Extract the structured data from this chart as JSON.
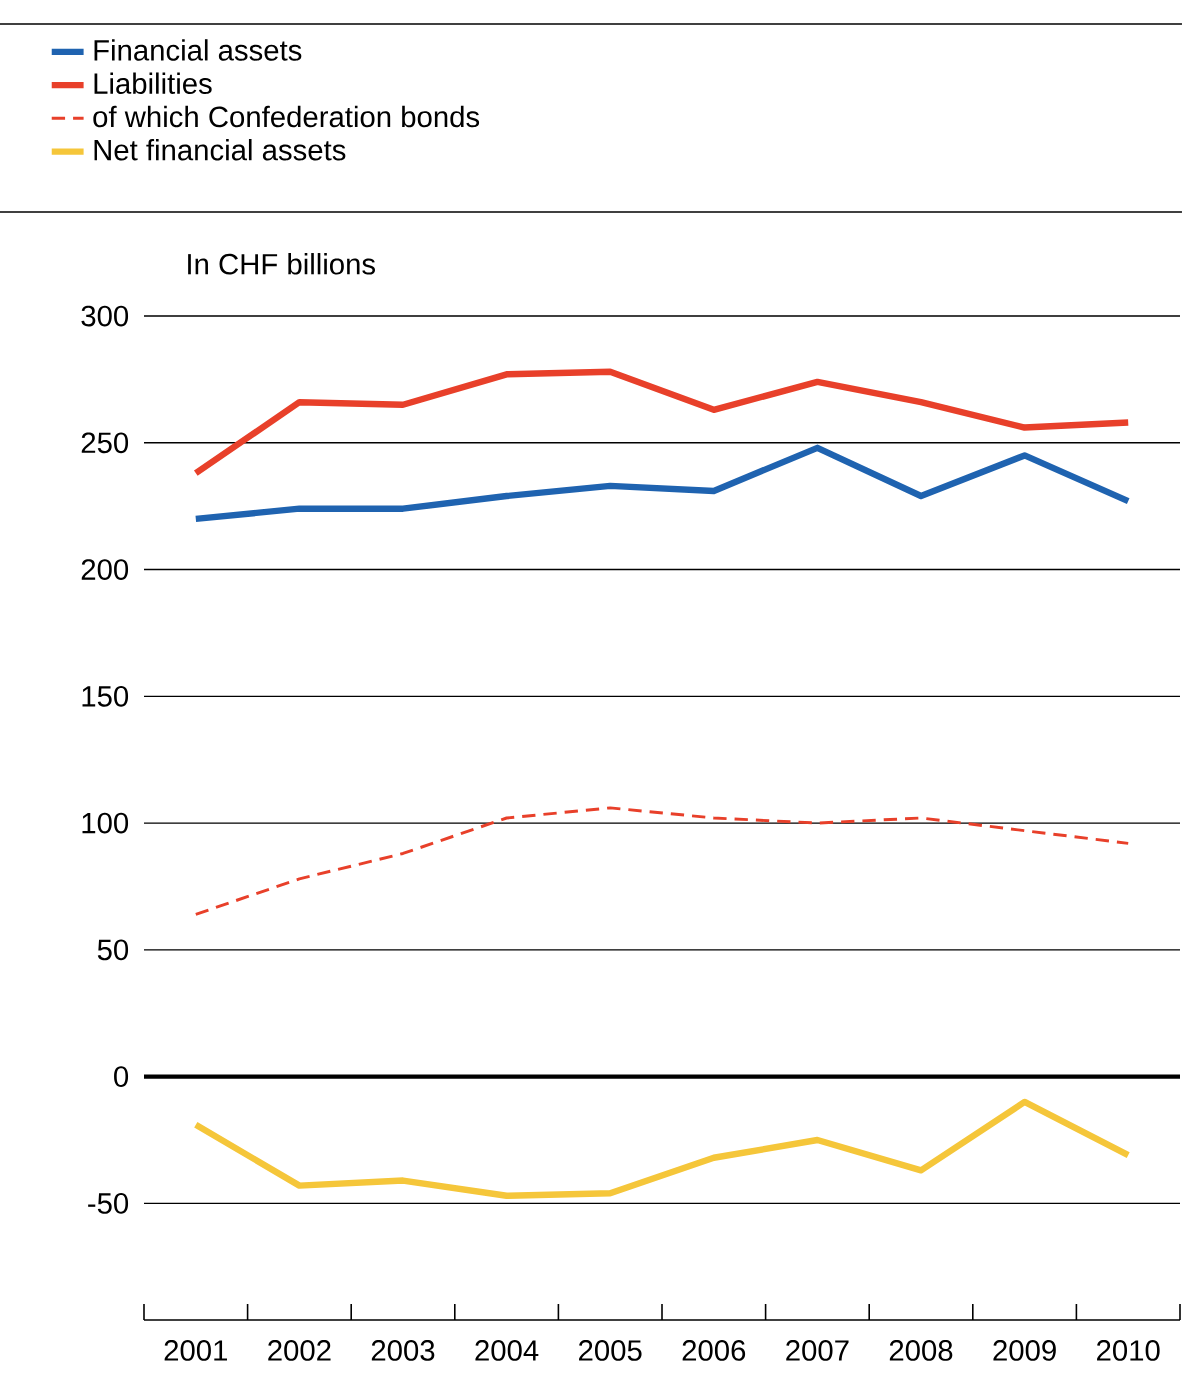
{
  "chart_data": {
    "type": "line",
    "ylabel": "In CHF billions",
    "categories": [
      "2001",
      "2002",
      "2003",
      "2004",
      "2005",
      "2006",
      "2007",
      "2008",
      "2009",
      "2010"
    ],
    "series": [
      {
        "name": "Financial assets",
        "color": "#1f63b0",
        "values": [
          220,
          224,
          224,
          229,
          233,
          231,
          248,
          229,
          245,
          227
        ]
      },
      {
        "name": "Liabilities",
        "color": "#e8402a",
        "values": [
          238,
          266,
          265,
          277,
          278,
          263,
          274,
          266,
          256,
          258
        ]
      },
      {
        "name": "of which Confederation bonds",
        "color": "#e8402a",
        "line_style": "dashed",
        "values": [
          64,
          78,
          88,
          102,
          106,
          102,
          100,
          102,
          97,
          92
        ]
      },
      {
        "name": "Net financial assets",
        "color": "#f5c63a",
        "values": [
          -19,
          -43,
          -41,
          -47,
          -46,
          -32,
          -25,
          -37,
          -10,
          -31
        ]
      }
    ],
    "ylim": [
      -96,
      300
    ],
    "yticks": [
      -50,
      0,
      50,
      100,
      150,
      200,
      250,
      300
    ],
    "grid": "y",
    "legend": "top",
    "ref_lines": [
      {
        "axis": "y",
        "value": 0,
        "color": "#000000"
      }
    ]
  }
}
